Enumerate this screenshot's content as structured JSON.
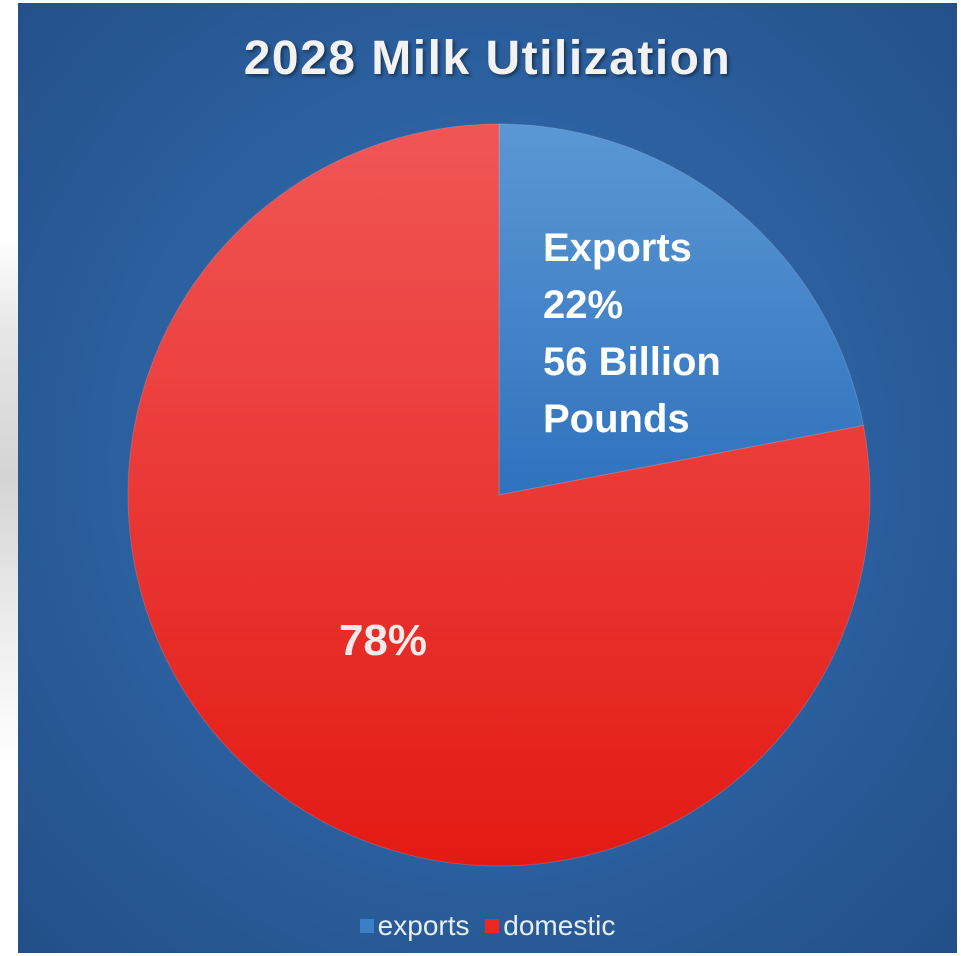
{
  "chart_data": {
    "type": "pie",
    "title": "2028 Milk Utilization",
    "slices": [
      {
        "name": "exports",
        "value": 22,
        "color": "#3a7fc8",
        "label_lines": [
          "Exports",
          "22%",
          "56 Billion",
          "Pounds"
        ]
      },
      {
        "name": "domestic",
        "value": 78,
        "color": "#ee2723",
        "label_lines": [
          "78%"
        ]
      }
    ],
    "legend": {
      "position": "bottom",
      "entries": [
        "exports",
        "domestic"
      ]
    }
  }
}
